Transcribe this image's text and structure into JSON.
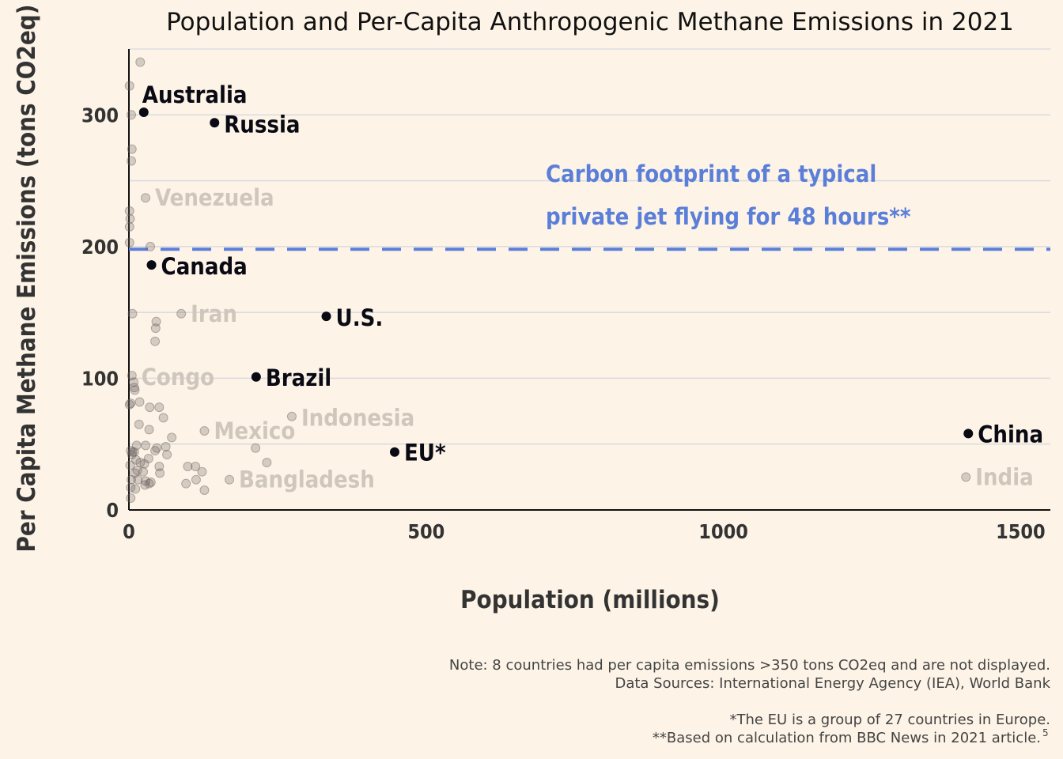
{
  "colors": {
    "background": "#fdf4e7",
    "highlight_point": "#0a0a14",
    "other_point": "#6b6060",
    "faded_label": "#cfc6bc",
    "reference_line": "#5b7fd8",
    "grid": "#dcdbe0"
  },
  "chart_data": {
    "type": "scatter",
    "title": "Population and Per-Capita Anthropogenic Methane Emissions in 2021",
    "xlabel": "Population (millions)",
    "ylabel": "Per Capita Methane Emissions (tons CO2eq)",
    "xlim": [
      0,
      1550
    ],
    "ylim": [
      0,
      350
    ],
    "x_ticks": [
      0,
      500,
      1000,
      1500
    ],
    "y_ticks": [
      0,
      100,
      200,
      300
    ],
    "grid": "horizontal",
    "highlighted": [
      {
        "label": "Australia",
        "x": 25,
        "y": 302
      },
      {
        "label": "Russia",
        "x": 144,
        "y": 294
      },
      {
        "label": "Canada",
        "x": 38,
        "y": 186
      },
      {
        "label": "U.S.",
        "x": 332,
        "y": 147
      },
      {
        "label": "Brazil",
        "x": 214,
        "y": 101
      },
      {
        "label": "EU*",
        "x": 447,
        "y": 44
      },
      {
        "label": "China",
        "x": 1412,
        "y": 58
      }
    ],
    "labeled_faded": [
      {
        "label": "Venezuela",
        "x": 28,
        "y": 237
      },
      {
        "label": "Iran",
        "x": 88,
        "y": 149
      },
      {
        "label": "Congo",
        "x": 5,
        "y": 102
      },
      {
        "label": "Mexico",
        "x": 127,
        "y": 60
      },
      {
        "label": "Indonesia",
        "x": 274,
        "y": 71
      },
      {
        "label": "Bangladesh",
        "x": 169,
        "y": 23
      },
      {
        "label": "India",
        "x": 1408,
        "y": 25
      }
    ],
    "other_points": [
      [
        19,
        340
      ],
      [
        1,
        322
      ],
      [
        4,
        300
      ],
      [
        5,
        274
      ],
      [
        4,
        265
      ],
      [
        1,
        227
      ],
      [
        2,
        221
      ],
      [
        1,
        215
      ],
      [
        1,
        203
      ],
      [
        36,
        200
      ],
      [
        6,
        149
      ],
      [
        46,
        143
      ],
      [
        45,
        138
      ],
      [
        44,
        128
      ],
      [
        8,
        97
      ],
      [
        9,
        93
      ],
      [
        10,
        91
      ],
      [
        18,
        82
      ],
      [
        3,
        81
      ],
      [
        1,
        80
      ],
      [
        35,
        78
      ],
      [
        51,
        78
      ],
      [
        58,
        70
      ],
      [
        17,
        65
      ],
      [
        34,
        61
      ],
      [
        72,
        55
      ],
      [
        47,
        47
      ],
      [
        3,
        45
      ],
      [
        6,
        44
      ],
      [
        13,
        49
      ],
      [
        28,
        49
      ],
      [
        62,
        48
      ],
      [
        64,
        42
      ],
      [
        44,
        45
      ],
      [
        9,
        44
      ],
      [
        5,
        42
      ],
      [
        12,
        38
      ],
      [
        19,
        36
      ],
      [
        33,
        39
      ],
      [
        2,
        34
      ],
      [
        26,
        35
      ],
      [
        24,
        29
      ],
      [
        14,
        30
      ],
      [
        10,
        28
      ],
      [
        51,
        33
      ],
      [
        99,
        33
      ],
      [
        112,
        33
      ],
      [
        52,
        28
      ],
      [
        4,
        23
      ],
      [
        15,
        23
      ],
      [
        28,
        22
      ],
      [
        37,
        21
      ],
      [
        27,
        19
      ],
      [
        34,
        20
      ],
      [
        113,
        23
      ],
      [
        96,
        20
      ],
      [
        123,
        29
      ],
      [
        127,
        15
      ],
      [
        213,
        47
      ],
      [
        232,
        36
      ],
      [
        3,
        17
      ],
      [
        11,
        16
      ],
      [
        3,
        9
      ]
    ],
    "reference_line": {
      "y": 198,
      "label_line1": "Carbon footprint of a typical",
      "label_line2": "private jet flying for 48 hours**"
    }
  },
  "notes": {
    "line1": "Note: 8 countries had per capita emissions >350 tons CO2eq and are not displayed.",
    "line2": "Data Sources: International Energy Agency (IEA), World Bank",
    "line3": "*The EU is a group of 27 countries in Europe.",
    "line4": "**Based on calculation from BBC News in 2021 article.",
    "line4_sup": "5"
  }
}
